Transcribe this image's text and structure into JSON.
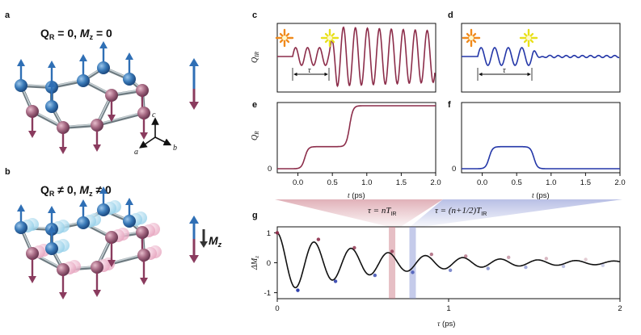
{
  "panels": {
    "a": {
      "label": "a",
      "title_sym": "Q",
      "title_sub": "R",
      "title_rest": " = 0, ",
      "title_m": "M",
      "title_msub": "z",
      "title_end": " = 0"
    },
    "b": {
      "label": "b",
      "title_sym": "Q",
      "title_sub": "R",
      "title_rest": " ≠ 0, ",
      "title_m": "M",
      "title_msub": "z",
      "title_end": " ≠ 0",
      "mz_label": "M",
      "mz_sub": "z"
    },
    "axes": {
      "c": "c",
      "a": "a",
      "b": "b"
    },
    "c": {
      "label": "c",
      "ylabel": "Q",
      "ylabel_sub": "IR",
      "tau": "τ"
    },
    "d": {
      "label": "d",
      "tau": "τ"
    },
    "e": {
      "label": "e",
      "ylabel": "Q",
      "ylabel_sub": "R",
      "xlabel": "t (ps)",
      "ytick": "0"
    },
    "f": {
      "label": "f",
      "xlabel": "t (ps)",
      "ytick": "0"
    },
    "g": {
      "label": "g",
      "ylabel": "ΔM",
      "ylabel_sub": "z",
      "xlabel": "τ (ps)"
    },
    "mid": {
      "left_eq": "τ = nT",
      "left_sub": "IR",
      "right_eq": "τ = (n+1/2)T",
      "right_sub": "IR"
    }
  },
  "chart_data": [
    {
      "panel": "c",
      "type": "line",
      "title": "",
      "ylabel": "Q_IR",
      "color": "#8c2d4a",
      "description_of_series": "IR mode oscillation: first pulse at ~0.2 ps drives small oscillation, second pulse at tau adds in phase giving larger amplitude"
    },
    {
      "panel": "d",
      "type": "line",
      "title": "",
      "color": "#2437a8",
      "description_of_series": "IR mode oscillation cancelled by second pulse at half period delay"
    },
    {
      "panel": "e",
      "type": "line",
      "xlabel": "t (ps)",
      "ylabel": "Q_R",
      "color": "#8c2d4a",
      "x_ticks": [
        "0.0",
        "0.5",
        "1.0",
        "1.5",
        "2.0"
      ],
      "xlim": [
        -0.3,
        2.0
      ],
      "y_ticks": [
        "0"
      ],
      "steps": [
        {
          "t": 0.0,
          "value": 0
        },
        {
          "t": 0.1,
          "value": 0.35
        },
        {
          "t": 0.75,
          "value": 1.0
        }
      ]
    },
    {
      "panel": "f",
      "type": "line",
      "xlabel": "t (ps)",
      "color": "#2437a8",
      "x_ticks": [
        "0.0",
        "0.5",
        "1.0",
        "1.5",
        "2.0"
      ],
      "xlim": [
        -0.3,
        2.0
      ],
      "y_ticks": [
        "0"
      ],
      "steps": [
        {
          "t": 0.0,
          "value": 0
        },
        {
          "t": 0.1,
          "value": 0.35
        },
        {
          "t": 0.75,
          "value": 0
        }
      ]
    },
    {
      "panel": "g",
      "type": "line",
      "xlabel": "τ (ps)",
      "ylabel": "ΔM_z",
      "x_ticks": [
        "0",
        "1",
        "2"
      ],
      "xlim": [
        0,
        2
      ],
      "y_ticks": [
        "1",
        "0",
        "-1"
      ],
      "ylim": [
        -1.2,
        1.2
      ],
      "period_ps": 0.2,
      "decay_ps": 0.55,
      "highlight_n": 0.67,
      "highlight_half": 0.79,
      "points_red": [
        [
          0.0,
          1.0
        ],
        [
          0.24,
          0.78
        ],
        [
          0.45,
          0.5
        ],
        [
          0.67,
          0.38
        ],
        [
          0.9,
          0.28
        ],
        [
          1.1,
          0.22
        ],
        [
          1.35,
          0.18
        ],
        [
          1.57,
          0.14
        ],
        [
          1.8,
          0.11
        ]
      ],
      "points_blue": [
        [
          0.12,
          -0.92
        ],
        [
          0.34,
          -0.62
        ],
        [
          0.57,
          -0.42
        ],
        [
          0.79,
          -0.32
        ],
        [
          1.01,
          -0.25
        ],
        [
          1.23,
          -0.19
        ],
        [
          1.45,
          -0.15
        ],
        [
          1.67,
          -0.12
        ],
        [
          1.9,
          -0.09
        ]
      ]
    }
  ],
  "colors": {
    "red": "#8c2d4a",
    "blue": "#2437a8",
    "lightred": "#d89aa8",
    "lightblue": "#a8b4dc"
  }
}
